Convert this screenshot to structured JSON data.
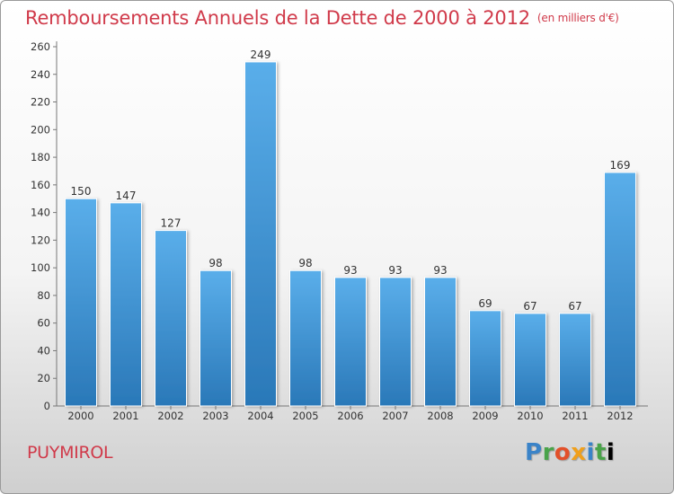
{
  "title": "Remboursements Annuels de la Dette de 2000 à 2012",
  "unit_note": "(en milliers d'€)",
  "city": "PUYMIROL",
  "logo": [
    "P",
    "r",
    "o",
    "x",
    "i",
    "t",
    "i"
  ],
  "colors": {
    "title": "#d03a4a",
    "bar_top": "#5aaeea",
    "bar_bottom": "#2a78b8"
  },
  "chart_data": {
    "type": "bar",
    "categories": [
      "2000",
      "2001",
      "2002",
      "2003",
      "2004",
      "2005",
      "2006",
      "2007",
      "2008",
      "2009",
      "2010",
      "2011",
      "2012"
    ],
    "values": [
      150,
      147,
      127,
      98,
      249,
      98,
      93,
      93,
      93,
      69,
      67,
      67,
      169
    ],
    "ylim": [
      0,
      260
    ],
    "yticks": [
      0,
      20,
      40,
      60,
      80,
      100,
      120,
      140,
      160,
      180,
      200,
      220,
      240,
      260
    ],
    "grid": false,
    "legend": "none"
  }
}
